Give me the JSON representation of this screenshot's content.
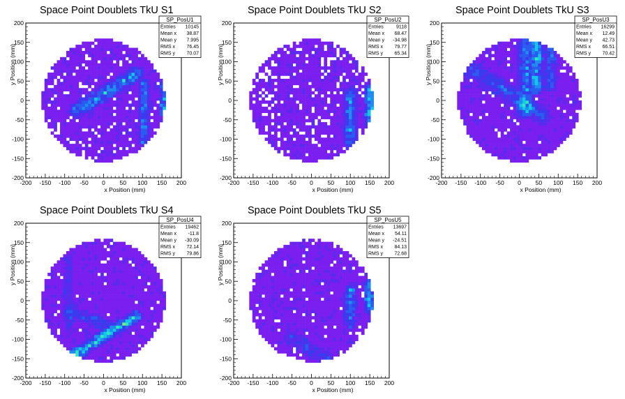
{
  "chart_data": [
    {
      "type": "heatmap",
      "title": "Space Point Doublets TkU S1",
      "xlabel": "x Position (mm)",
      "ylabel": "y Position (mm)",
      "xlim": [
        -200,
        200
      ],
      "ylim": [
        -200,
        200
      ],
      "xticks": [
        -200,
        -150,
        -100,
        -50,
        0,
        50,
        100,
        150,
        200
      ],
      "yticks": [
        -200,
        -150,
        -100,
        -50,
        0,
        50,
        100,
        150,
        200
      ],
      "grid": false,
      "stats_box": {
        "name": "SP_PosU1",
        "rows": [
          {
            "label": "Entries",
            "value": "10145"
          },
          {
            "label": "Mean x",
            "value": "38.87"
          },
          {
            "label": "Mean y",
            "value": "7.995"
          },
          {
            "label": "RMS x",
            "value": "76.45"
          },
          {
            "label": "RMS y",
            "value": "70.07"
          }
        ]
      }
    },
    {
      "type": "heatmap",
      "title": "Space Point Doublets TkU S2",
      "xlabel": "x Position (mm)",
      "ylabel": "y Position (mm)",
      "xlim": [
        -200,
        200
      ],
      "ylim": [
        -200,
        200
      ],
      "xticks": [
        -200,
        -150,
        -100,
        -50,
        0,
        50,
        100,
        150,
        200
      ],
      "yticks": [
        -200,
        -150,
        -100,
        -50,
        0,
        50,
        100,
        150,
        200
      ],
      "grid": false,
      "stats_box": {
        "name": "SP_PosU2",
        "rows": [
          {
            "label": "Entries",
            "value": "9118"
          },
          {
            "label": "Mean x",
            "value": "68.47"
          },
          {
            "label": "Mean y",
            "value": "-34.98"
          },
          {
            "label": "RMS x",
            "value": "79.77"
          },
          {
            "label": "RMS y",
            "value": "65.34"
          }
        ]
      }
    },
    {
      "type": "heatmap",
      "title": "Space Point Doublets TkU S3",
      "xlabel": "x Position (mm)",
      "ylabel": "y Position (mm)",
      "xlim": [
        -200,
        200
      ],
      "ylim": [
        -200,
        200
      ],
      "xticks": [
        -200,
        -150,
        -100,
        -50,
        0,
        50,
        100,
        150,
        200
      ],
      "yticks": [
        -200,
        -150,
        -100,
        -50,
        0,
        50,
        100,
        150,
        200
      ],
      "grid": false,
      "stats_box": {
        "name": "SP_PosU3",
        "rows": [
          {
            "label": "Entries",
            "value": "16299"
          },
          {
            "label": "Mean x",
            "value": "12.49"
          },
          {
            "label": "Mean y",
            "value": "42.73"
          },
          {
            "label": "RMS x",
            "value": "66.51"
          },
          {
            "label": "RMS y",
            "value": "70.42"
          }
        ]
      }
    },
    {
      "type": "heatmap",
      "title": "Space Point Doublets TkU S4",
      "xlabel": "x Position (mm)",
      "ylabel": "y Position (mm)",
      "xlim": [
        -200,
        200
      ],
      "ylim": [
        -200,
        200
      ],
      "xticks": [
        -200,
        -150,
        -100,
        -50,
        0,
        50,
        100,
        150,
        200
      ],
      "yticks": [
        -200,
        -150,
        -100,
        -50,
        0,
        50,
        100,
        150,
        200
      ],
      "grid": false,
      "stats_box": {
        "name": "SP_PosU4",
        "rows": [
          {
            "label": "Entries",
            "value": "19462"
          },
          {
            "label": "Mean x",
            "value": "-11.8"
          },
          {
            "label": "Mean y",
            "value": "-30.09"
          },
          {
            "label": "RMS x",
            "value": "72.14"
          },
          {
            "label": "RMS y",
            "value": "79.86"
          }
        ]
      }
    },
    {
      "type": "heatmap",
      "title": "Space Point Doublets TkU S5",
      "xlabel": "x Position (mm)",
      "ylabel": "y Position (mm)",
      "xlim": [
        -200,
        200
      ],
      "ylim": [
        -200,
        200
      ],
      "xticks": [
        -200,
        -150,
        -100,
        -50,
        0,
        50,
        100,
        150,
        200
      ],
      "yticks": [
        -200,
        -150,
        -100,
        -50,
        0,
        50,
        100,
        150,
        200
      ],
      "grid": false,
      "stats_box": {
        "name": "SP_PosU5",
        "rows": [
          {
            "label": "Entries",
            "value": "13697"
          },
          {
            "label": "Mean x",
            "value": "54.11"
          },
          {
            "label": "Mean y",
            "value": "-24.51"
          },
          {
            "label": "RMS x",
            "value": "84.13"
          },
          {
            "label": "RMS y",
            "value": "72.68"
          }
        ]
      }
    }
  ],
  "colors": {
    "background": "#ffffff",
    "base_cell": "#7a1fef",
    "palette": [
      "#7a1fef",
      "#5a2aef",
      "#3a3aef",
      "#2a5cef",
      "#1f8cef",
      "#10c8e8",
      "#30e8c0",
      "#70f080",
      "#c0f040",
      "#f0c020",
      "#e82020"
    ]
  }
}
